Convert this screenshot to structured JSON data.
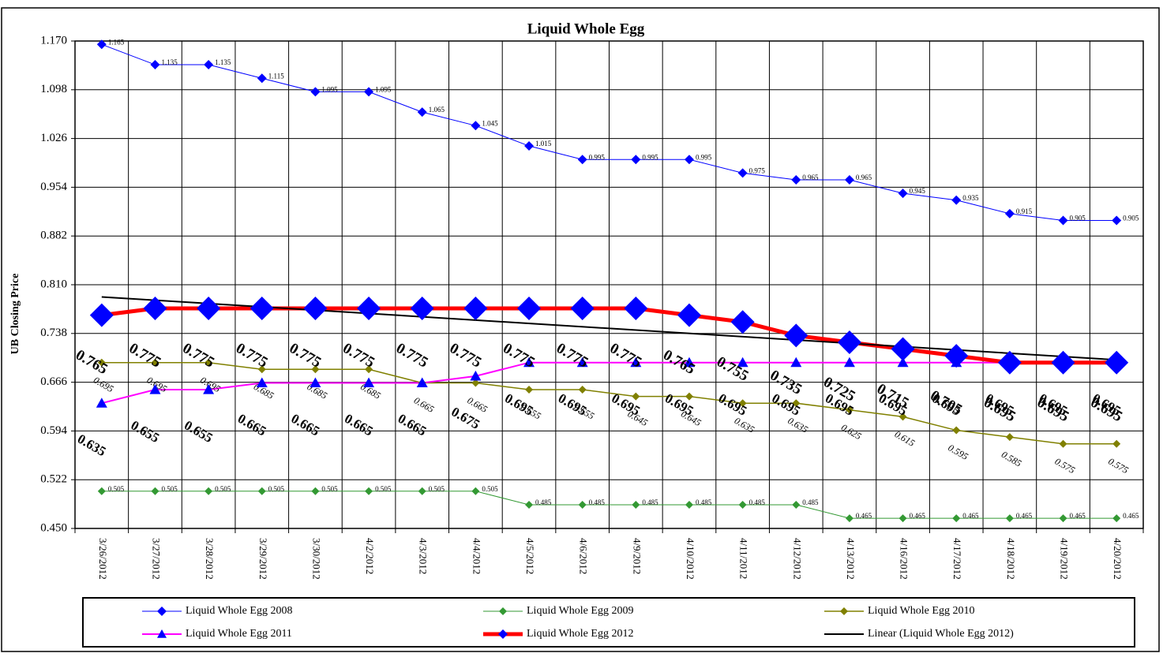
{
  "chart_data": {
    "type": "line",
    "title": "Liquid Whole Egg",
    "y_label": "UB Closing Price",
    "categories": [
      "3/26/2012",
      "3/27/2012",
      "3/28/2012",
      "3/29/2012",
      "3/30/2012",
      "4/2/2012",
      "4/3/2012",
      "4/4/2012",
      "4/5/2012",
      "4/6/2012",
      "4/9/2012",
      "4/10/2012",
      "4/11/2012",
      "4/12/2012",
      "4/13/2012",
      "4/16/2012",
      "4/17/2012",
      "4/18/2012",
      "4/19/2012",
      "4/20/2012"
    ],
    "series": [
      {
        "name": "Liquid Whole Egg 2008",
        "color": "#0000ff",
        "marker": "diamond",
        "marker_color": "#0000ff",
        "values": [
          1.165,
          1.135,
          1.135,
          1.115,
          1.095,
          1.095,
          1.065,
          1.045,
          1.015,
          0.995,
          0.995,
          0.995,
          0.975,
          0.965,
          0.965,
          0.945,
          0.935,
          0.915,
          0.905,
          0.905
        ]
      },
      {
        "name": "Liquid Whole Egg 2009",
        "color": "#339933",
        "marker": "diamond",
        "marker_color": "#339933",
        "values": [
          0.505,
          0.505,
          0.505,
          0.505,
          0.505,
          0.505,
          0.505,
          0.505,
          0.485,
          0.485,
          0.485,
          0.485,
          0.485,
          0.485,
          0.465,
          0.465,
          0.465,
          0.465,
          0.465,
          0.465
        ]
      },
      {
        "name": "Liquid Whole Egg 2010",
        "color": "#808000",
        "marker": "diamond",
        "marker_color": "#808000",
        "values": [
          0.695,
          0.695,
          0.695,
          0.685,
          0.685,
          0.685,
          0.665,
          0.665,
          0.655,
          0.655,
          0.645,
          0.645,
          0.635,
          0.635,
          0.625,
          0.615,
          0.595,
          0.585,
          0.575,
          0.575
        ]
      },
      {
        "name": "Liquid Whole Egg 2011",
        "color": "#ff00ff",
        "marker": "triangle",
        "marker_color": "#0000ff",
        "values": [
          0.635,
          0.655,
          0.655,
          0.665,
          0.665,
          0.665,
          0.665,
          0.675,
          0.695,
          0.695,
          0.695,
          0.695,
          0.695,
          0.695,
          0.695,
          0.695,
          0.695,
          0.695,
          0.695,
          0.695
        ]
      },
      {
        "name": "Liquid Whole Egg 2012",
        "color": "#ff0000",
        "marker": "diamond",
        "marker_color": "#0000ff",
        "values": [
          0.765,
          0.775,
          0.775,
          0.775,
          0.775,
          0.775,
          0.775,
          0.775,
          0.775,
          0.775,
          0.775,
          0.765,
          0.755,
          0.735,
          0.725,
          0.715,
          0.705,
          0.695,
          0.695,
          0.695
        ]
      }
    ],
    "trendline": {
      "name": "Linear (Liquid Whole Egg 2012)",
      "color": "#000000",
      "values": [
        0.792,
        0.699
      ]
    },
    "ylim": [
      0.45,
      1.17
    ],
    "yticks": [
      {
        "value": 0.45,
        "label": "0.450"
      },
      0.522,
      0.594,
      0.666,
      0.738,
      {
        "value": 0.81,
        "label": "0.810"
      },
      0.882,
      0.954,
      1.026,
      1.098,
      {
        "value": 1.17,
        "label": "1.170"
      }
    ],
    "grid": true,
    "legend": "bottom"
  }
}
